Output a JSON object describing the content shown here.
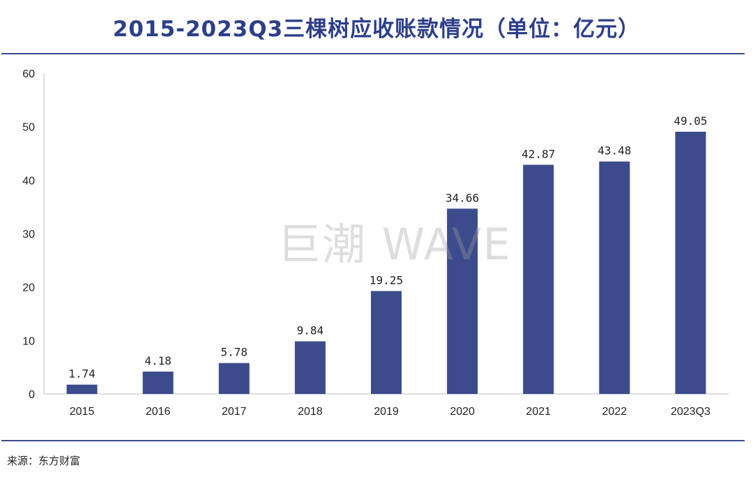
{
  "title": "2015-2023Q3三棵树应收账款情况（单位：亿元）",
  "source": "来源：东方财富",
  "watermark": "巨潮 WAVE",
  "colors": {
    "bar": "#3c4b8b",
    "title": "#2d3f8a",
    "rule": "#3d4b8c"
  },
  "chart_data": {
    "type": "bar",
    "title": "2015-2023Q3三棵树应收账款情况（单位：亿元）",
    "categories": [
      "2015",
      "2016",
      "2017",
      "2018",
      "2019",
      "2020",
      "2021",
      "2022",
      "2023Q3"
    ],
    "values": [
      1.74,
      4.18,
      5.78,
      9.84,
      19.25,
      34.66,
      42.87,
      43.48,
      49.05
    ],
    "value_labels": [
      "1.74",
      "4.18",
      "5.78",
      "9.84",
      "19.25",
      "34.66",
      "42.87",
      "43.48",
      "49.05"
    ],
    "ylim": [
      0,
      60
    ],
    "yticks": [
      "0",
      "10",
      "20",
      "30",
      "40",
      "50",
      "60"
    ],
    "xlabel": "",
    "ylabel": "",
    "grid": false,
    "legend": "none"
  }
}
